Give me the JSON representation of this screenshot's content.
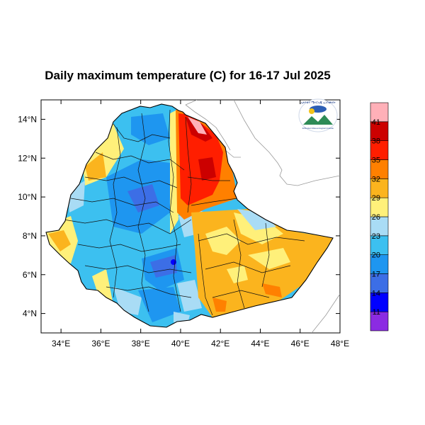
{
  "title": "Daily maximum temperature (C) for 16-17 Jul 2025",
  "map": {
    "lon_range": [
      33,
      48
    ],
    "lat_range": [
      3,
      15
    ],
    "lon_ticks": [
      {
        "value": 34,
        "label": "34°E"
      },
      {
        "value": 36,
        "label": "36°E"
      },
      {
        "value": 38,
        "label": "38°E"
      },
      {
        "value": 40,
        "label": "40°E"
      },
      {
        "value": 42,
        "label": "42°E"
      },
      {
        "value": 44,
        "label": "44°E"
      },
      {
        "value": 46,
        "label": "46°E"
      },
      {
        "value": 48,
        "label": "48°E"
      }
    ],
    "lat_ticks": [
      {
        "value": 14,
        "label": "14°N"
      },
      {
        "value": 12,
        "label": "12°N"
      },
      {
        "value": 10,
        "label": "10°N"
      },
      {
        "value": 8,
        "label": "8°N"
      },
      {
        "value": 6,
        "label": "6°N"
      },
      {
        "value": 4,
        "label": "4°N"
      }
    ]
  },
  "colorbar": {
    "levels": [
      "11",
      "14",
      "17",
      "20",
      "23",
      "26",
      "29",
      "32",
      "35",
      "38",
      "41"
    ],
    "colors": [
      "#8b2be2",
      "#0000ff",
      "#3c6ee6",
      "#1e96f0",
      "#3cc0f0",
      "#a9dcf5",
      "#fff07a",
      "#fbb41e",
      "#ff8000",
      "#ff1e00",
      "#cc0000",
      "#ffb0b8"
    ]
  },
  "logo": {
    "text": "ኢትዮጵያ ሜትሮሎጂ ኢንስቲትዩት",
    "subtext": "Ethiopian Meteorological Institute"
  }
}
